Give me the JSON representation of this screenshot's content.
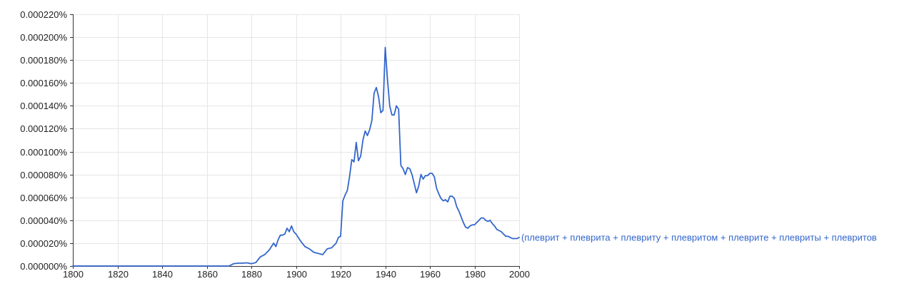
{
  "chart_data": {
    "type": "line",
    "title": "",
    "xlabel": "",
    "ylabel": "",
    "xlim": [
      1800,
      2000
    ],
    "ylim": [
      0,
      0.00022
    ],
    "grid": true,
    "x_ticks": [
      1800,
      1820,
      1840,
      1860,
      1880,
      1900,
      1920,
      1940,
      1960,
      1980,
      2000
    ],
    "x_tick_labels": [
      "1800",
      "1820",
      "1840",
      "1860",
      "1880",
      "1900",
      "1920",
      "1940",
      "1960",
      "1980",
      "2000"
    ],
    "y_ticks": [
      0,
      2e-05,
      4e-05,
      6e-05,
      8e-05,
      0.0001,
      0.00012,
      0.00014,
      0.00016,
      0.00018,
      0.0002,
      0.00022
    ],
    "y_tick_labels": [
      "0.000000%",
      "0.000020%",
      "0.000040%",
      "0.000060%",
      "0.000080%",
      "0.000100%",
      "0.000120%",
      "0.000140%",
      "0.000160%",
      "0.000180%",
      "0.000200%",
      "0.000220%"
    ],
    "series": [
      {
        "name": "(плеврит + плеврита + плевриту + плевритом + плеврите + плевриты + плевритов",
        "color": "#3366cc",
        "x": [
          1800,
          1870,
          1872,
          1874,
          1876,
          1878,
          1880,
          1882,
          1884,
          1886,
          1888,
          1890,
          1891,
          1892,
          1893,
          1894,
          1895,
          1896,
          1897,
          1898,
          1899,
          1900,
          1902,
          1904,
          1906,
          1908,
          1910,
          1912,
          1914,
          1916,
          1918,
          1919,
          1920,
          1921,
          1922,
          1923,
          1924,
          1925,
          1926,
          1927,
          1928,
          1929,
          1930,
          1931,
          1932,
          1933,
          1934,
          1935,
          1936,
          1937,
          1938,
          1939,
          1940,
          1941,
          1942,
          1943,
          1944,
          1945,
          1946,
          1947,
          1948,
          1949,
          1950,
          1951,
          1952,
          1953,
          1954,
          1955,
          1956,
          1957,
          1958,
          1959,
          1960,
          1961,
          1962,
          1963,
          1964,
          1965,
          1966,
          1967,
          1968,
          1969,
          1970,
          1971,
          1972,
          1973,
          1974,
          1975,
          1976,
          1977,
          1978,
          1979,
          1980,
          1981,
          1982,
          1983,
          1984,
          1985,
          1986,
          1987,
          1988,
          1989,
          1990,
          1991,
          1992,
          1993,
          1994,
          1995,
          1996,
          1997,
          1998,
          1999,
          2000
        ],
        "values": [
          0,
          0,
          2e-06,
          2.5e-06,
          2.5e-06,
          2.8e-06,
          2e-06,
          3e-06,
          8e-06,
          1e-05,
          1.4e-05,
          2e-05,
          1.7e-05,
          2.3e-05,
          2.7e-05,
          2.7e-05,
          2.8e-05,
          3.3e-05,
          3e-05,
          3.5e-05,
          3e-05,
          2.8e-05,
          2.2e-05,
          1.7e-05,
          1.5e-05,
          1.2e-05,
          1.1e-05,
          1e-05,
          1.5e-05,
          1.6e-05,
          2e-05,
          2.5e-05,
          2.6e-05,
          5.7e-05,
          6.2e-05,
          6.6e-05,
          7.8e-05,
          9.3e-05,
          9.1e-05,
          0.000108,
          9.2e-05,
          9.6e-05,
          0.00011,
          0.000118,
          0.000114,
          0.000119,
          0.000127,
          0.000151,
          0.000156,
          0.000148,
          0.000134,
          0.000136,
          0.000191,
          0.000163,
          0.00014,
          0.000132,
          0.000132,
          0.00014,
          0.000137,
          8.8e-05,
          8.5e-05,
          8e-05,
          8.6e-05,
          8.5e-05,
          8e-05,
          7.2e-05,
          6.4e-05,
          7e-05,
          8e-05,
          7.6e-05,
          7.9e-05,
          7.9e-05,
          8.1e-05,
          8.1e-05,
          7.8e-05,
          6.8e-05,
          6.3e-05,
          5.9e-05,
          5.7e-05,
          5.8e-05,
          5.6e-05,
          6.1e-05,
          6.1e-05,
          5.9e-05,
          5.2e-05,
          4.8e-05,
          4.3e-05,
          3.8e-05,
          3.4e-05,
          3.3e-05,
          3.5e-05,
          3.6e-05,
          3.6e-05,
          3.8e-05,
          4e-05,
          4.2e-05,
          4.2e-05,
          4e-05,
          3.9e-05,
          4e-05,
          3.7e-05,
          3.5e-05,
          3.2e-05,
          3.1e-05,
          3e-05,
          2.8e-05,
          2.6e-05,
          2.6e-05,
          2.5e-05,
          2.4e-05,
          2.4e-05,
          2.4e-05,
          2.5e-05
        ]
      }
    ]
  }
}
